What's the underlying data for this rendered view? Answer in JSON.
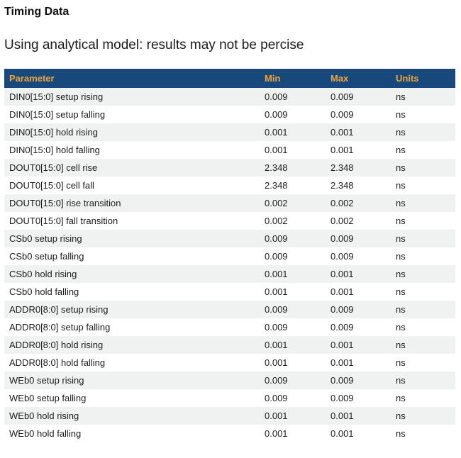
{
  "page": {
    "title": "Timing Data",
    "subtitle": "Using analytical model: results may not be percise"
  },
  "table": {
    "columns": [
      "Parameter",
      "Min",
      "Max",
      "Units"
    ],
    "rows": [
      {
        "parameter": "DIN0[15:0] setup rising",
        "min": "0.009",
        "max": "0.009",
        "units": "ns"
      },
      {
        "parameter": "DIN0[15:0] setup falling",
        "min": "0.009",
        "max": "0.009",
        "units": "ns"
      },
      {
        "parameter": "DIN0[15:0] hold rising",
        "min": "0.001",
        "max": "0.001",
        "units": "ns"
      },
      {
        "parameter": "DIN0[15:0] hold falling",
        "min": "0.001",
        "max": "0.001",
        "units": "ns"
      },
      {
        "parameter": "DOUT0[15:0] cell rise",
        "min": "2.348",
        "max": "2.348",
        "units": "ns"
      },
      {
        "parameter": "DOUT0[15:0] cell fall",
        "min": "2.348",
        "max": "2.348",
        "units": "ns"
      },
      {
        "parameter": "DOUT0[15:0] rise transition",
        "min": "0.002",
        "max": "0.002",
        "units": "ns"
      },
      {
        "parameter": "DOUT0[15:0] fall transition",
        "min": "0.002",
        "max": "0.002",
        "units": "ns"
      },
      {
        "parameter": "CSb0 setup rising",
        "min": "0.009",
        "max": "0.009",
        "units": "ns"
      },
      {
        "parameter": "CSb0 setup falling",
        "min": "0.009",
        "max": "0.009",
        "units": "ns"
      },
      {
        "parameter": "CSb0 hold rising",
        "min": "0.001",
        "max": "0.001",
        "units": "ns"
      },
      {
        "parameter": "CSb0 hold falling",
        "min": "0.001",
        "max": "0.001",
        "units": "ns"
      },
      {
        "parameter": "ADDR0[8:0] setup rising",
        "min": "0.009",
        "max": "0.009",
        "units": "ns"
      },
      {
        "parameter": "ADDR0[8:0] setup falling",
        "min": "0.009",
        "max": "0.009",
        "units": "ns"
      },
      {
        "parameter": "ADDR0[8:0] hold rising",
        "min": "0.001",
        "max": "0.001",
        "units": "ns"
      },
      {
        "parameter": "ADDR0[8:0] hold falling",
        "min": "0.001",
        "max": "0.001",
        "units": "ns"
      },
      {
        "parameter": "WEb0 setup rising",
        "min": "0.009",
        "max": "0.009",
        "units": "ns"
      },
      {
        "parameter": "WEb0 setup falling",
        "min": "0.009",
        "max": "0.009",
        "units": "ns"
      },
      {
        "parameter": "WEb0 hold rising",
        "min": "0.001",
        "max": "0.001",
        "units": "ns"
      },
      {
        "parameter": "WEb0 hold falling",
        "min": "0.001",
        "max": "0.001",
        "units": "ns"
      }
    ]
  },
  "colors": {
    "header_bg": "#17497D",
    "header_text": "#EFA536",
    "row_alt_bg": "#F0F1F1",
    "body_text": "#1B1B1B"
  }
}
